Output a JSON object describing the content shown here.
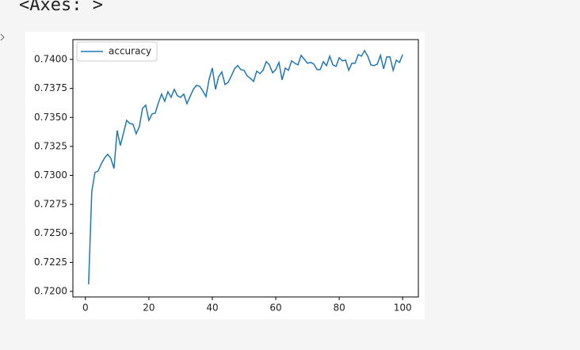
{
  "output_text": "<Axes: >",
  "chart_data": {
    "type": "line",
    "x": [
      1,
      2,
      3,
      4,
      5,
      6,
      7,
      8,
      9,
      10,
      11,
      12,
      13,
      14,
      15,
      16,
      17,
      18,
      19,
      20,
      21,
      22,
      23,
      24,
      25,
      26,
      27,
      28,
      29,
      30,
      31,
      32,
      33,
      34,
      35,
      36,
      37,
      38,
      39,
      40,
      41,
      42,
      43,
      44,
      45,
      46,
      47,
      48,
      49,
      50,
      51,
      52,
      53,
      54,
      55,
      56,
      57,
      58,
      59,
      60,
      61,
      62,
      63,
      64,
      65,
      66,
      67,
      68,
      69,
      70,
      71,
      72,
      73,
      74,
      75,
      76,
      77,
      78,
      79,
      80,
      81,
      82,
      83,
      84,
      85,
      86,
      87,
      88,
      89,
      90,
      91,
      92,
      93,
      94,
      95,
      96,
      97,
      98,
      99,
      100
    ],
    "series": [
      {
        "name": "accuracy",
        "color": "#1f77b4",
        "values": [
          0.72061,
          0.72861,
          0.73025,
          0.73038,
          0.731,
          0.73148,
          0.73182,
          0.73148,
          0.73059,
          0.73387,
          0.73257,
          0.73366,
          0.73475,
          0.73448,
          0.73441,
          0.73359,
          0.73421,
          0.73578,
          0.73605,
          0.73475,
          0.7353,
          0.73537,
          0.73626,
          0.73701,
          0.73639,
          0.73721,
          0.73673,
          0.73742,
          0.73687,
          0.73673,
          0.73701,
          0.73619,
          0.7368,
          0.73742,
          0.73776,
          0.73769,
          0.73728,
          0.7368,
          0.7383,
          0.73926,
          0.73742,
          0.73851,
          0.73892,
          0.73783,
          0.73803,
          0.73858,
          0.73919,
          0.73947,
          0.73912,
          0.73906,
          0.73858,
          0.73837,
          0.7381,
          0.73899,
          0.73878,
          0.73906,
          0.73981,
          0.73953,
          0.73885,
          0.73912,
          0.73974,
          0.73824,
          0.73926,
          0.73906,
          0.73988,
          0.73967,
          0.73953,
          0.74035,
          0.74001,
          0.73967,
          0.73974,
          0.7396,
          0.73912,
          0.73912,
          0.73981,
          0.73947,
          0.74028,
          0.73953,
          0.7394,
          0.74015,
          0.73988,
          0.73994,
          0.73906,
          0.73967,
          0.73967,
          0.74042,
          0.74028,
          0.74076,
          0.74028,
          0.73953,
          0.73947,
          0.7396,
          0.74035,
          0.73919,
          0.74022,
          0.74022,
          0.73906,
          0.73994,
          0.73974,
          0.74042
        ]
      }
    ],
    "xlim": [
      -3.95,
      104.95
    ],
    "xticks": [
      0,
      20,
      40,
      60,
      80,
      100
    ],
    "ylim": [
      0.71952,
      0.74171
    ],
    "yticks": [
      {
        "value": 0.72,
        "label": "0.7200"
      },
      {
        "value": 0.7225,
        "label": "0.7225"
      },
      {
        "value": 0.725,
        "label": "0.7250"
      },
      {
        "value": 0.7275,
        "label": "0.7275"
      },
      {
        "value": 0.73,
        "label": "0.7300"
      },
      {
        "value": 0.7325,
        "label": "0.7325"
      },
      {
        "value": 0.735,
        "label": "0.7350"
      },
      {
        "value": 0.7375,
        "label": "0.7375"
      },
      {
        "value": 0.74,
        "label": "0.7400"
      }
    ],
    "legend": "upper left"
  }
}
